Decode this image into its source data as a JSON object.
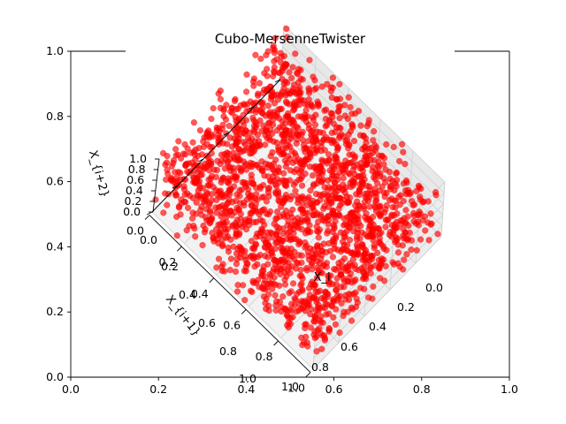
{
  "chart_data": {
    "type": "scatter",
    "title": "Cubo-MersenneTwister",
    "outer_axes": {
      "xlim": [
        0.0,
        1.0
      ],
      "ylim": [
        0.0,
        1.0
      ],
      "xticks": [
        "0.0",
        "0.2",
        "0.4",
        "0.6",
        "0.8",
        "1.0"
      ],
      "yticks": [
        "0.0",
        "0.2",
        "0.4",
        "0.6",
        "0.8",
        "1.0"
      ]
    },
    "axes3d": {
      "xlabel": "X_i",
      "ylabel": "X_{i+1}",
      "zlabel": "X_{i+2}",
      "xlim": [
        0.0,
        1.0
      ],
      "ylim": [
        0.0,
        1.0
      ],
      "zlim": [
        0.0,
        1.0
      ],
      "xticks": [
        "0.0",
        "0.2",
        "0.4",
        "0.6",
        "0.8",
        "1.0"
      ],
      "yticks": [
        "0.0",
        "0.2",
        "0.4",
        "0.6",
        "0.8",
        "1.0"
      ],
      "zticks": [
        "0.0",
        "0.2",
        "0.4",
        "0.6",
        "0.8",
        "1.0"
      ],
      "grid": true
    },
    "series": [
      {
        "color": "#ff0000",
        "alpha": 0.65,
        "n_points": 2000,
        "distribution": "uniform in unit cube (consecutive Mersenne Twister triples)"
      }
    ]
  }
}
